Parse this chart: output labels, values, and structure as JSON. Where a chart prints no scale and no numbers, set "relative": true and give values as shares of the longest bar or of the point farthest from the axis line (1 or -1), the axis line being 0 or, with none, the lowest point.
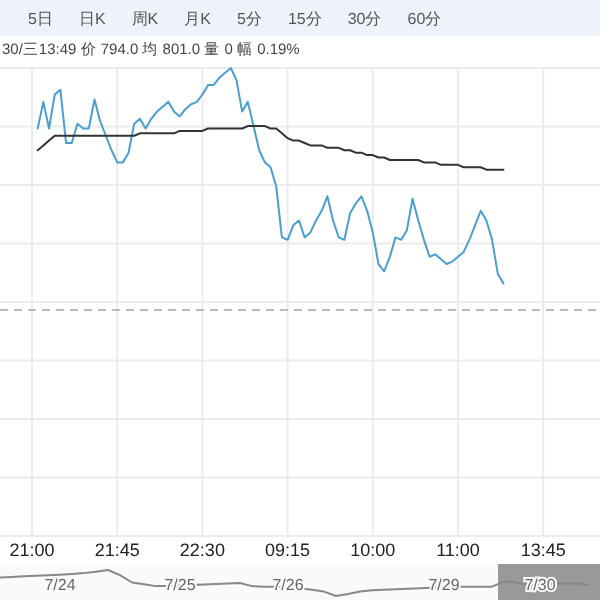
{
  "chart_data": [
    {
      "type": "line",
      "relative": true,
      "grid": true,
      "marker": "none",
      "line_style": "solid",
      "annotations": [
        "5日",
        "日K",
        "周K",
        "月K",
        "5分",
        "15分",
        "30分",
        "60分",
        "30/三13:49 价 794.0 均 801.0 量 0 幅 0.19%"
      ],
      "categories": [
        "21:00",
        null,
        null,
        null,
        null,
        null,
        null,
        null,
        null,
        null,
        null,
        null,
        null,
        null,
        null,
        "21:45",
        null,
        null,
        null,
        null,
        null,
        null,
        null,
        null,
        null,
        null,
        null,
        null,
        null,
        null,
        "22:30",
        null,
        null,
        null,
        null,
        null,
        null,
        null,
        null,
        null,
        null,
        null,
        null,
        null,
        null,
        "09:15",
        null,
        null,
        null,
        null,
        null,
        null,
        null,
        null,
        null,
        null,
        null,
        null,
        null,
        null,
        "10:00",
        null,
        null,
        null,
        null,
        null,
        null,
        null,
        null,
        null,
        null,
        null,
        null,
        null,
        null,
        "11:00",
        null,
        null,
        null,
        null,
        null,
        null,
        null,
        null,
        null,
        null,
        null,
        null,
        null,
        null,
        "13:45",
        null,
        null,
        null,
        null,
        null,
        null,
        null,
        null,
        null,
        null
      ],
      "ref_lines": [
        {
          "axis": "y",
          "value": 0,
          "color": "#bbbbbb",
          "line_style": "dashed"
        }
      ],
      "series": [
        {
          "color": "#4a9fd0",
          "values": [
            null,
            0.75,
            0.86,
            0.75,
            0.89,
            0.91,
            0.69,
            0.69,
            0.77,
            0.75,
            0.75,
            0.87,
            0.78,
            0.72,
            0.66,
            0.61,
            0.61,
            0.65,
            0.77,
            0.79,
            0.75,
            0.79,
            0.82,
            0.84,
            0.86,
            0.82,
            0.8,
            0.83,
            0.85,
            0.86,
            0.89,
            0.93,
            0.93,
            0.96,
            0.98,
            1,
            0.95,
            0.82,
            0.86,
            0.76,
            0.66,
            0.61,
            0.59,
            0.51,
            0.3,
            0.29,
            0.35,
            0.37,
            0.3,
            0.32,
            0.37,
            0.41,
            0.47,
            0.37,
            0.3,
            0.29,
            0.4,
            0.44,
            0.47,
            0.41,
            0.32,
            0.19,
            0.16,
            0.22,
            0.3,
            0.29,
            0.33,
            0.46,
            0.37,
            0.29,
            0.22,
            0.23,
            0.21,
            0.19,
            0.2,
            0.22,
            0.24,
            0.29,
            0.35,
            0.41,
            0.37,
            0.29,
            0.15,
            0.11,
            null,
            null,
            null,
            null,
            null,
            null,
            null,
            null,
            null,
            null,
            null,
            null,
            null,
            null,
            null,
            null,
            null
          ]
        },
        {
          "color": "#333333",
          "values": [
            null,
            0.66,
            0.68,
            0.7,
            0.72,
            0.72,
            0.72,
            0.72,
            0.72,
            0.72,
            0.72,
            0.72,
            0.72,
            0.72,
            0.72,
            0.72,
            0.72,
            0.72,
            0.72,
            0.73,
            0.73,
            0.73,
            0.73,
            0.73,
            0.73,
            0.73,
            0.74,
            0.74,
            0.74,
            0.74,
            0.74,
            0.75,
            0.75,
            0.75,
            0.75,
            0.75,
            0.75,
            0.75,
            0.76,
            0.76,
            0.76,
            0.76,
            0.75,
            0.75,
            0.73,
            0.71,
            0.7,
            0.7,
            0.69,
            0.68,
            0.68,
            0.68,
            0.67,
            0.67,
            0.67,
            0.66,
            0.66,
            0.65,
            0.65,
            0.64,
            0.64,
            0.63,
            0.63,
            0.62,
            0.62,
            0.62,
            0.62,
            0.62,
            0.62,
            0.61,
            0.61,
            0.61,
            0.6,
            0.6,
            0.6,
            0.6,
            0.59,
            0.59,
            0.59,
            0.59,
            0.58,
            0.58,
            0.58,
            0.58,
            null,
            null,
            null,
            null,
            null,
            null,
            null,
            null,
            null,
            null,
            null,
            null,
            null,
            null,
            null,
            null,
            null
          ]
        }
      ]
    },
    {
      "type": "line",
      "relative": true,
      "marker": "none",
      "line_style": "solid",
      "categories": [
        null,
        null,
        null,
        null,
        null,
        "7/24",
        null,
        null,
        null,
        null,
        null,
        null,
        null,
        null,
        null,
        "7/25",
        null,
        null,
        null,
        null,
        null,
        null,
        null,
        null,
        "7/26",
        null,
        null,
        null,
        null,
        null,
        null,
        null,
        null,
        null,
        null,
        null,
        null,
        "7/29",
        null,
        null,
        null,
        null,
        null,
        null,
        null,
        "7/30",
        null,
        null,
        null,
        null,
        null
      ],
      "series": [
        {
          "color": "#888888",
          "values": [
            0.71,
            0.73,
            0.76,
            0.78,
            0.8,
            0.82,
            0.85,
            0.88,
            0.93,
            1,
            0.8,
            0.52,
            0.45,
            0.38,
            0.38,
            0.4,
            0.42,
            0.44,
            0.46,
            0.48,
            0.5,
            0.38,
            0.36,
            0.36,
            0.35,
            0.3,
            0.24,
            0.17,
            0,
            0.08,
            0.17,
            0.22,
            0.24,
            0.26,
            0.28,
            0.3,
            0.32,
            0.34,
            0.36,
            0.36,
            0.36,
            0.36,
            0.55,
            0.52,
            0.45,
            0.44,
            0.46,
            0.49,
            0.48,
            0.43,
            null
          ]
        }
      ]
    }
  ]
}
